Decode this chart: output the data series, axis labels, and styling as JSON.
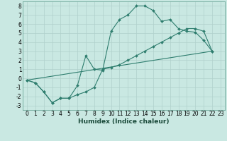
{
  "title": "",
  "xlabel": "Humidex (Indice chaleur)",
  "xlim": [
    -0.5,
    23.5
  ],
  "ylim": [
    -3.5,
    8.5
  ],
  "xticks": [
    0,
    1,
    2,
    3,
    4,
    5,
    6,
    7,
    8,
    9,
    10,
    11,
    12,
    13,
    14,
    15,
    16,
    17,
    18,
    19,
    20,
    21,
    22,
    23
  ],
  "yticks": [
    -3,
    -2,
    -1,
    0,
    1,
    2,
    3,
    4,
    5,
    6,
    7,
    8
  ],
  "background_color": "#c9e8e2",
  "grid_color": "#b0d0cc",
  "line_color": "#2e7d6e",
  "line1_x": [
    0,
    1,
    2,
    3,
    4,
    5,
    6,
    7,
    8,
    9,
    10,
    11,
    12,
    13,
    14,
    15,
    16,
    17,
    18,
    19,
    20,
    21,
    22
  ],
  "line1_y": [
    -0.2,
    -0.5,
    -1.5,
    -2.7,
    -2.2,
    -2.2,
    -0.8,
    2.5,
    1.0,
    0.9,
    5.2,
    6.5,
    7.0,
    8.0,
    8.0,
    7.5,
    6.3,
    6.5,
    5.5,
    5.2,
    5.1,
    4.2,
    3.0
  ],
  "line2_x": [
    0,
    1,
    2,
    3,
    4,
    5,
    6,
    7,
    8,
    9,
    10,
    11,
    12,
    13,
    14,
    15,
    16,
    17,
    18,
    19,
    20,
    21,
    22
  ],
  "line2_y": [
    -0.2,
    -0.5,
    -1.5,
    -2.7,
    -2.2,
    -2.2,
    -1.8,
    -1.5,
    -1.0,
    1.0,
    1.2,
    1.5,
    2.0,
    2.5,
    3.0,
    3.5,
    4.0,
    4.5,
    5.0,
    5.5,
    5.5,
    5.2,
    3.0
  ],
  "line3_x": [
    0,
    22
  ],
  "line3_y": [
    -0.2,
    3.0
  ],
  "tick_fontsize": 5.5,
  "xlabel_fontsize": 6.5
}
